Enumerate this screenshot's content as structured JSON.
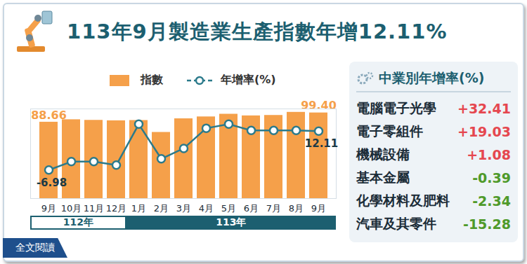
{
  "chart_data": {
    "type": "bar",
    "title": "113年9月製造業生產指數年增12.11%",
    "categories": [
      "9月",
      "10月",
      "11月",
      "12月",
      "1月",
      "2月",
      "3月",
      "4月",
      "5月",
      "6月",
      "7月",
      "8月",
      "9月"
    ],
    "series": [
      {
        "name": "指數",
        "type": "bar",
        "color": "#f5a04a",
        "values": [
          88.66,
          91.5,
          90.8,
          90.3,
          90.6,
          76.8,
          92.6,
          94.8,
          97.9,
          96.0,
          96.5,
          100.1,
          99.4
        ],
        "value_labels": [
          "88.66",
          null,
          null,
          null,
          null,
          null,
          null,
          null,
          null,
          null,
          null,
          null,
          "99.40"
        ]
      },
      {
        "name": "年增率(%)",
        "type": "line",
        "axis": "y2",
        "color": "#2b7a8b",
        "marker": "circle",
        "values": [
          -6.98,
          -2.9,
          -2.9,
          -4.6,
          15.5,
          -1.5,
          3.6,
          13.5,
          15.5,
          12.4,
          12.4,
          12.4,
          12.11
        ],
        "value_labels": [
          "-6.98",
          null,
          null,
          null,
          null,
          null,
          null,
          null,
          null,
          null,
          null,
          null,
          "12.11"
        ]
      }
    ],
    "ylim": [
      0,
      104
    ],
    "yticks": [],
    "y2lim": [
      -21,
      23
    ],
    "y2ticks": [],
    "tick_labels": "x",
    "data_labels": true,
    "legend": "top",
    "year_groups": [
      {
        "label": "112年",
        "count": 4
      },
      {
        "label": "113年",
        "count": 9
      }
    ]
  },
  "panel": {
    "title": "中業別年增率(%)",
    "items": [
      {
        "label": "電腦電子光學",
        "value": 32.41,
        "value_label": "+32.41"
      },
      {
        "label": "電子零組件",
        "value": 19.03,
        "value_label": "+19.03"
      },
      {
        "label": "機械設備",
        "value": 1.08,
        "value_label": "+1.08"
      },
      {
        "label": "基本金屬",
        "value": -0.39,
        "value_label": "-0.39"
      },
      {
        "label": "化學材料及肥料",
        "value": -2.34,
        "value_label": "-2.34"
      },
      {
        "label": "汽車及其零件",
        "value": -15.28,
        "value_label": "-15.28"
      }
    ]
  },
  "link": "全文閱讀"
}
